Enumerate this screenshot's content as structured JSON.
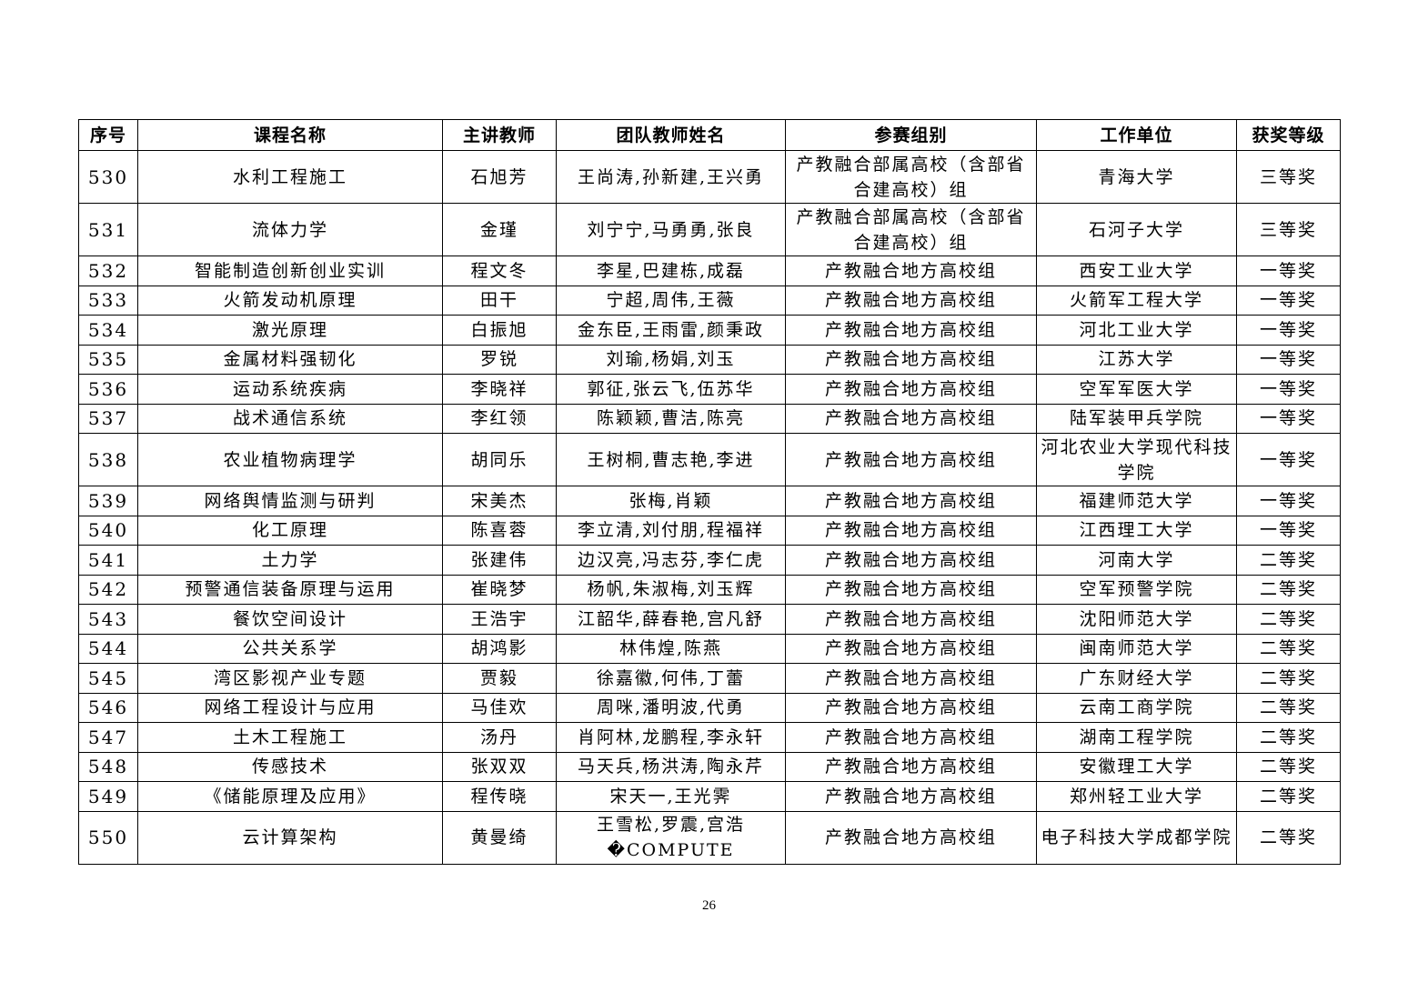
{
  "table": {
    "headers": [
      "序号",
      "课程名称",
      "主讲教师",
      "团队教师姓名",
      "参赛组别",
      "工作单位",
      "获奖等级"
    ],
    "rows": [
      [
        "530",
        "水利工程施工",
        "石旭芳",
        "王尚涛,孙新建,王兴勇",
        "产教融合部属高校（含部省合建高校）组",
        "青海大学",
        "三等奖"
      ],
      [
        "531",
        "流体力学",
        "金瑾",
        "刘宁宁,马勇勇,张良",
        "产教融合部属高校（含部省合建高校）组",
        "石河子大学",
        "三等奖"
      ],
      [
        "532",
        "智能制造创新创业实训",
        "程文冬",
        "李星,巴建栋,成磊",
        "产教融合地方高校组",
        "西安工业大学",
        "一等奖"
      ],
      [
        "533",
        "火箭发动机原理",
        "田干",
        "宁超,周伟,王薇",
        "产教融合地方高校组",
        "火箭军工程大学",
        "一等奖"
      ],
      [
        "534",
        "激光原理",
        "白振旭",
        "金东臣,王雨雷,颜秉政",
        "产教融合地方高校组",
        "河北工业大学",
        "一等奖"
      ],
      [
        "535",
        "金属材料强韧化",
        "罗锐",
        "刘瑜,杨娟,刘玉",
        "产教融合地方高校组",
        "江苏大学",
        "一等奖"
      ],
      [
        "536",
        "运动系统疾病",
        "李晓祥",
        "郭征,张云飞,伍苏华",
        "产教融合地方高校组",
        "空军军医大学",
        "一等奖"
      ],
      [
        "537",
        "战术通信系统",
        "李红领",
        "陈颖颖,曹洁,陈亮",
        "产教融合地方高校组",
        "陆军装甲兵学院",
        "一等奖"
      ],
      [
        "538",
        "农业植物病理学",
        "胡同乐",
        "王树桐,曹志艳,李进",
        "产教融合地方高校组",
        "河北农业大学现代科技学院",
        "一等奖"
      ],
      [
        "539",
        "网络舆情监测与研判",
        "宋美杰",
        "张梅,肖颖",
        "产教融合地方高校组",
        "福建师范大学",
        "一等奖"
      ],
      [
        "540",
        "化工原理",
        "陈喜蓉",
        "李立清,刘付朋,程福祥",
        "产教融合地方高校组",
        "江西理工大学",
        "一等奖"
      ],
      [
        "541",
        "土力学",
        "张建伟",
        "边汉亮,冯志芬,李仁虎",
        "产教融合地方高校组",
        "河南大学",
        "二等奖"
      ],
      [
        "542",
        "预警通信装备原理与运用",
        "崔晓梦",
        "杨帆,朱淑梅,刘玉辉",
        "产教融合地方高校组",
        "空军预警学院",
        "二等奖"
      ],
      [
        "543",
        "餐饮空间设计",
        "王浩宇",
        "江韶华,薛春艳,宫凡舒",
        "产教融合地方高校组",
        "沈阳师范大学",
        "二等奖"
      ],
      [
        "544",
        "公共关系学",
        "胡鸿影",
        "林伟煌,陈燕",
        "产教融合地方高校组",
        "闽南师范大学",
        "二等奖"
      ],
      [
        "545",
        "湾区影视产业专题",
        "贾毅",
        "徐嘉徽,何伟,丁蕾",
        "产教融合地方高校组",
        "广东财经大学",
        "二等奖"
      ],
      [
        "546",
        "网络工程设计与应用",
        "马佳欢",
        "周咪,潘明波,代勇",
        "产教融合地方高校组",
        "云南工商学院",
        "二等奖"
      ],
      [
        "547",
        "土木工程施工",
        "汤丹",
        "肖阿林,龙鹏程,李永轩",
        "产教融合地方高校组",
        "湖南工程学院",
        "二等奖"
      ],
      [
        "548",
        "传感技术",
        "张双双",
        "马天兵,杨洪涛,陶永芹",
        "产教融合地方高校组",
        "安徽理工大学",
        "二等奖"
      ],
      [
        "549",
        "《储能原理及应用》",
        "程传晓",
        "宋天一,王光霁",
        "产教融合地方高校组",
        "郑州轻工业大学",
        "二等奖"
      ],
      [
        "550",
        "云计算架构",
        "黄曼绮",
        "王雪松,罗震,宫浩�COMPUTE",
        "产教融合地方高校组",
        "电子科技大学成都学院",
        "二等奖"
      ]
    ]
  },
  "page_number": "26"
}
